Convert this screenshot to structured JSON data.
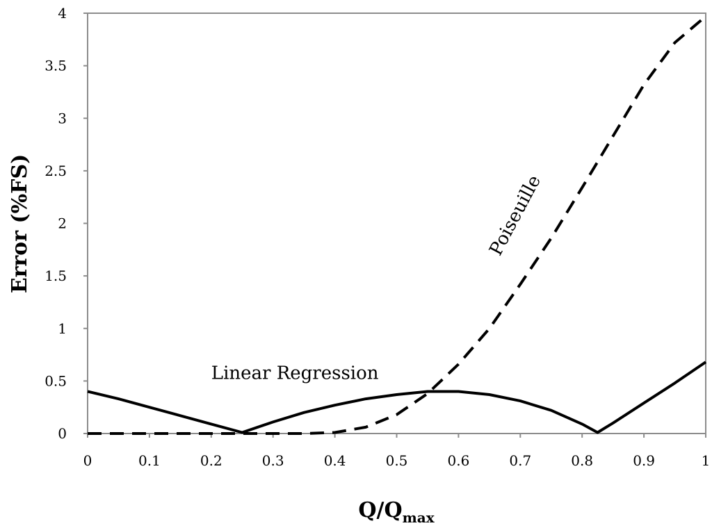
{
  "chart_data": {
    "type": "line",
    "xlabel": "Q/Q",
    "xlabel_sub": "max",
    "ylabel": "Error (%FS)",
    "xlim": [
      0,
      1
    ],
    "ylim": [
      0,
      4
    ],
    "x_ticks": [
      "0",
      "0.1",
      "0.2",
      "0.3",
      "0.4",
      "0.5",
      "0.6",
      "0.7",
      "0.8",
      "0.9",
      "1"
    ],
    "y_ticks": [
      "0",
      "0.5",
      "1",
      "1.5",
      "2",
      "2.5",
      "3",
      "3.5",
      "4"
    ],
    "grid": false,
    "series": [
      {
        "name": "Linear Regression",
        "style": "solid",
        "x": [
          0,
          0.05,
          0.1,
          0.15,
          0.2,
          0.25,
          0.3,
          0.35,
          0.4,
          0.45,
          0.5,
          0.55,
          0.57,
          0.6,
          0.65,
          0.7,
          0.75,
          0.8,
          0.825,
          0.85,
          0.9,
          0.95,
          1
        ],
        "values": [
          0.4,
          0.33,
          0.25,
          0.17,
          0.09,
          0.01,
          0.11,
          0.2,
          0.27,
          0.33,
          0.37,
          0.4,
          0.4,
          0.4,
          0.37,
          0.31,
          0.22,
          0.09,
          0.01,
          0.1,
          0.29,
          0.48,
          0.68
        ]
      },
      {
        "name": "Poiseuille",
        "style": "dashed",
        "x": [
          0,
          0.1,
          0.2,
          0.3,
          0.35,
          0.4,
          0.45,
          0.5,
          0.55,
          0.6,
          0.65,
          0.7,
          0.75,
          0.8,
          0.85,
          0.9,
          0.95,
          1
        ],
        "values": [
          0,
          0,
          0,
          0,
          0,
          0.01,
          0.06,
          0.18,
          0.38,
          0.66,
          1.0,
          1.42,
          1.86,
          2.34,
          2.83,
          3.32,
          3.72,
          3.97
        ]
      }
    ],
    "annotations": [
      {
        "text": "Linear Regression",
        "x": 0.2,
        "y": 0.52,
        "angle": 0
      },
      {
        "text": "Poiseuille",
        "x": 0.7,
        "y": 2.05,
        "angle": -62
      }
    ]
  }
}
